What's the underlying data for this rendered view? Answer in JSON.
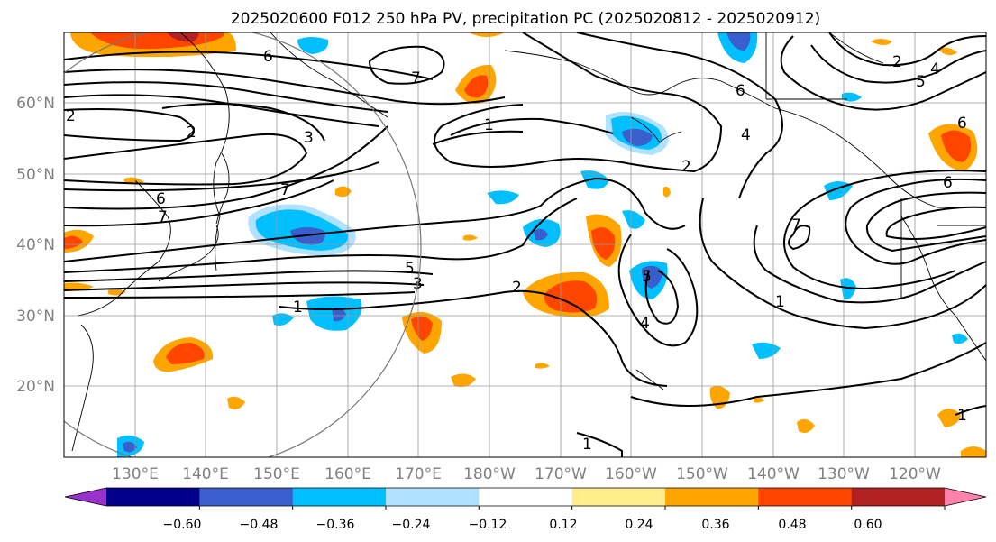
{
  "title": "2025020600 F012 250 hPa PV, precipitation PC (2025020812 - 2025020912)",
  "lat_labels": [
    "60°N",
    "50°N",
    "40°N",
    "30°N",
    "20°N"
  ],
  "lon_labels": [
    "130°E",
    "140°E",
    "150°E",
    "160°E",
    "170°E",
    "180°W",
    "170°W",
    "160°W",
    "150°W",
    "140°W",
    "130°W",
    "120°W"
  ],
  "colorbar": {
    "ticks": [
      "−0.60",
      "−0.48",
      "−0.36",
      "−0.24",
      "−0.12",
      "0.12",
      "0.24",
      "0.36",
      "0.48",
      "0.60"
    ],
    "colors": [
      "#9932cc",
      "#00008b",
      "#3a5fcd",
      "#00bfff",
      "#b0e2ff",
      "#ffffff",
      "#ffec8b",
      "#ffa500",
      "#ff4500",
      "#b22222",
      "#ff82ab"
    ]
  },
  "contour_labels": [
    "6",
    "7",
    "3",
    "2",
    "6",
    "7",
    "7",
    "5",
    "3",
    "1",
    "1",
    "2",
    "6",
    "5",
    "4",
    "2",
    "7",
    "1",
    "6",
    "5",
    "4",
    "4",
    "2",
    "1",
    "1",
    "2",
    "6"
  ]
}
